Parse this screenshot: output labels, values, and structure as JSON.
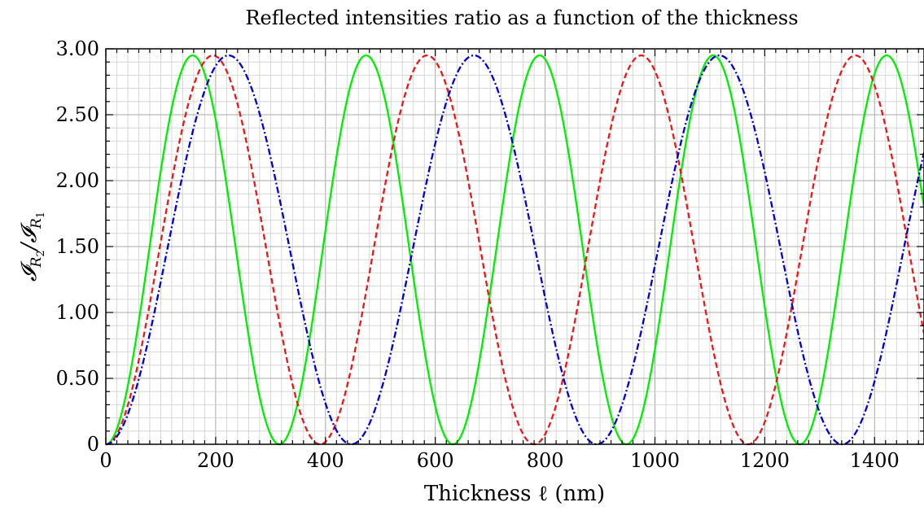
{
  "chart_data": {
    "type": "line",
    "title": "Reflected intensities ratio as a function of the thickness",
    "xlabel": "Thickness ℓ (nm)",
    "ylabel": "𝓘R₂/𝓘R₁",
    "ylabel_main": "𝓘",
    "ylabel_sub1": "R",
    "ylabel_sub1b": "2",
    "ylabel_slash": "/𝓘",
    "ylabel_sub2": "R",
    "ylabel_sub2b": "1",
    "xlim": [
      0,
      1490
    ],
    "ylim": [
      0,
      3.0
    ],
    "x_ticks": [
      0,
      200,
      400,
      600,
      800,
      1000,
      1200,
      1400
    ],
    "x_tick_labels": [
      "0",
      "200",
      "400",
      "600",
      "800",
      "1000",
      "1200",
      "1400"
    ],
    "y_ticks": [
      0,
      0.5,
      1.0,
      1.5,
      2.0,
      2.5,
      3.0
    ],
    "y_tick_labels": [
      "0",
      "0.50",
      "1.00",
      "1.50",
      "2.00",
      "2.50",
      "3.00"
    ],
    "grid": true,
    "series": [
      {
        "color": "#00ee00",
        "style": "solid",
        "amplitude": 2.95,
        "period_nm": 316
      },
      {
        "color": "#e81818",
        "style": "dashed",
        "amplitude": 2.95,
        "period_nm": 390
      },
      {
        "color": "#0000cc",
        "style": "dashdot",
        "amplitude": 2.95,
        "period_nm": 447
      }
    ]
  }
}
